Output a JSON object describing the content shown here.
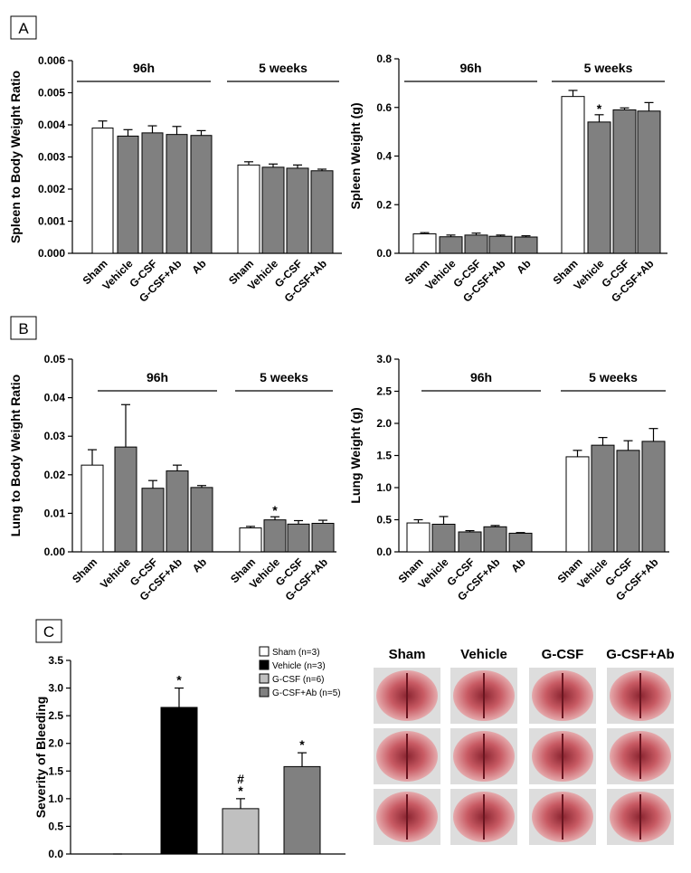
{
  "panel_labels": [
    "A",
    "B",
    "C"
  ],
  "chart_data": [
    {
      "type": "grouped_bar",
      "y_label": "Spleen to Body Weight Ratio",
      "ylim": [
        0,
        0.006
      ],
      "yticks": [
        {
          "value": 0,
          "label": "0.000"
        },
        0.001,
        0.002,
        0.003,
        0.004,
        0.005,
        0.006
      ],
      "groups": [
        {
          "label": "96h",
          "categories": [
            "Sham",
            "Vehicle",
            "G-CSF",
            "G-CSF+Ab",
            "Ab"
          ],
          "values": [
            0.0039,
            0.00365,
            0.00375,
            0.0037,
            0.00367
          ],
          "errors": [
            0.00022,
            0.0002,
            0.00022,
            0.00025,
            0.00015
          ],
          "colors": [
            "#ffffff",
            "#808080",
            "#808080",
            "#808080",
            "#808080"
          ]
        },
        {
          "label": "5 weeks",
          "categories": [
            "Sham",
            "Vehicle",
            "G-CSF",
            "G-CSF+Ab"
          ],
          "values": [
            0.00275,
            0.00268,
            0.00265,
            0.00257
          ],
          "errors": [
            0.0001,
            0.0001,
            0.0001,
            5e-05
          ],
          "colors": [
            "#ffffff",
            "#808080",
            "#808080",
            "#808080"
          ]
        }
      ]
    },
    {
      "type": "grouped_bar",
      "y_label": "Spleen Weight (g)",
      "ylim": [
        0,
        0.8
      ],
      "yticks": [
        {
          "value": 0,
          "label": "0.0"
        },
        0.2,
        0.4,
        0.6,
        0.8
      ],
      "groups": [
        {
          "label": "96h",
          "categories": [
            "Sham",
            "Vehicle",
            "G-CSF",
            "G-CSF+Ab",
            "Ab"
          ],
          "values": [
            0.08,
            0.068,
            0.075,
            0.07,
            0.067
          ],
          "errors": [
            0.005,
            0.007,
            0.008,
            0.005,
            0.005
          ],
          "colors": [
            "#ffffff",
            "#808080",
            "#808080",
            "#808080",
            "#808080"
          ]
        },
        {
          "label": "5 weeks",
          "categories": [
            "Sham",
            "Vehicle",
            "G-CSF",
            "G-CSF+Ab"
          ],
          "values": [
            0.645,
            0.54,
            0.59,
            0.585
          ],
          "errors": [
            0.025,
            0.03,
            0.008,
            0.035
          ],
          "colors": [
            "#ffffff",
            "#808080",
            "#808080",
            "#808080"
          ],
          "annotations": [
            null,
            "*",
            null,
            null
          ]
        }
      ]
    },
    {
      "type": "grouped_bar",
      "y_label": "Lung to Body Weight Ratio",
      "ylim": [
        0,
        0.05
      ],
      "yticks": [
        {
          "value": 0,
          "label": "0.00"
        },
        0.01,
        0.02,
        0.03,
        0.04,
        0.05
      ],
      "groups": [
        {
          "label": "96h",
          "categories": [
            "Sham",
            "Vehicle",
            "G-CSF",
            "G-CSF+Ab",
            "Ab"
          ],
          "values": [
            0.0225,
            0.0272,
            0.0165,
            0.021,
            0.0167
          ],
          "errors": [
            0.004,
            0.011,
            0.002,
            0.0015,
            0.0005
          ],
          "colors": [
            "#ffffff",
            "#808080",
            "#808080",
            "#808080",
            "#808080"
          ]
        },
        {
          "label": "5 weeks",
          "categories": [
            "Sham",
            "Vehicle",
            "G-CSF",
            "G-CSF+Ab"
          ],
          "values": [
            0.0062,
            0.0083,
            0.0072,
            0.0074
          ],
          "errors": [
            0.0004,
            0.0008,
            0.0009,
            0.0008
          ],
          "colors": [
            "#ffffff",
            "#808080",
            "#808080",
            "#808080"
          ],
          "annotations": [
            null,
            "*",
            null,
            null
          ]
        }
      ]
    },
    {
      "type": "grouped_bar",
      "y_label": "Lung Weight (g)",
      "ylim": [
        0,
        3
      ],
      "yticks": [
        {
          "value": 0,
          "label": "0.0"
        },
        0.5,
        {
          "value": 1,
          "label": "1.0"
        },
        1.5,
        {
          "value": 2,
          "label": "2.0"
        },
        2.5,
        {
          "value": 3,
          "label": "3.0"
        }
      ],
      "groups": [
        {
          "label": "96h",
          "categories": [
            "Sham",
            "Vehicle",
            "G-CSF",
            "G-CSF+Ab",
            "Ab"
          ],
          "values": [
            0.45,
            0.43,
            0.31,
            0.39,
            0.29
          ],
          "errors": [
            0.05,
            0.12,
            0.02,
            0.02,
            0.01
          ],
          "colors": [
            "#ffffff",
            "#808080",
            "#808080",
            "#808080",
            "#808080"
          ]
        },
        {
          "label": "5 weeks",
          "categories": [
            "Sham",
            "Vehicle",
            "G-CSF",
            "G-CSF+Ab"
          ],
          "values": [
            1.48,
            1.66,
            1.58,
            1.72
          ],
          "errors": [
            0.1,
            0.12,
            0.15,
            0.2
          ],
          "colors": [
            "#ffffff",
            "#808080",
            "#808080",
            "#808080"
          ]
        }
      ]
    },
    {
      "type": "bar",
      "y_label": "Severity of Bleeding",
      "ylim": [
        0,
        3.5
      ],
      "yticks": [
        {
          "value": 0,
          "label": "0.0"
        },
        0.5,
        {
          "value": 1,
          "label": "1.0"
        },
        1.5,
        {
          "value": 2,
          "label": "2.0"
        },
        2.5,
        {
          "value": 3,
          "label": "3.0"
        },
        3.5
      ],
      "series": [
        {
          "name": "Sham (n=3)",
          "color": "#ffffff",
          "values": [
            0
          ],
          "errors": [
            0
          ]
        },
        {
          "name": "Vehicle (n=3)",
          "color": "#000000",
          "values": [
            2.65
          ],
          "errors": [
            0.35
          ],
          "annotations": [
            "*"
          ]
        },
        {
          "name": "G-CSF (n=6)",
          "color": "#c0c0c0",
          "values": [
            0.82
          ],
          "errors": [
            0.18
          ],
          "annotations": [
            "#",
            "*"
          ]
        },
        {
          "name": "G-CSF+Ab (n=5)",
          "color": "#808080",
          "values": [
            1.58
          ],
          "errors": [
            0.25
          ],
          "annotations": [
            "*"
          ]
        }
      ]
    }
  ],
  "photo_grid": {
    "columns": [
      "Sham",
      "Vehicle",
      "G-CSF",
      "G-CSF+Ab"
    ]
  }
}
